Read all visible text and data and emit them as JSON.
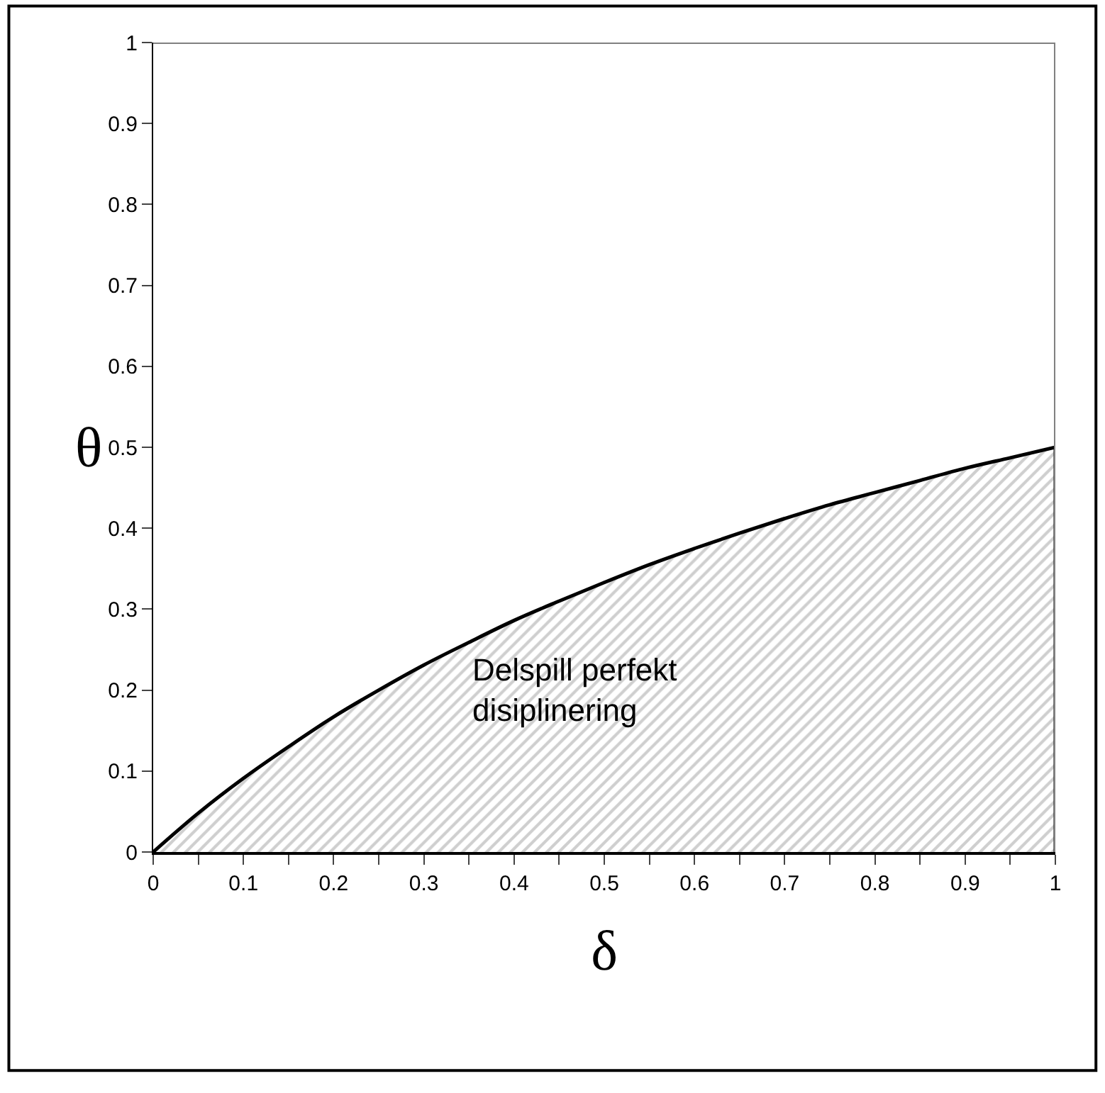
{
  "chart_data": {
    "type": "area",
    "xlabel": "δ",
    "ylabel": "θ",
    "x": [
      0,
      0.05,
      0.1,
      0.15,
      0.2,
      0.25,
      0.3,
      0.35,
      0.4,
      0.45,
      0.5,
      0.55,
      0.6,
      0.65,
      0.7,
      0.75,
      0.8,
      0.85,
      0.9,
      0.95,
      1
    ],
    "series": [
      {
        "color": "#000000",
        "values": [
          0,
          0.048,
          0.091,
          0.13,
          0.167,
          0.2,
          0.231,
          0.259,
          0.286,
          0.31,
          0.333,
          0.355,
          0.375,
          0.394,
          0.412,
          0.429,
          0.444,
          0.459,
          0.474,
          0.487,
          0.5
        ]
      }
    ],
    "xlim": [
      0,
      1
    ],
    "ylim": [
      0,
      1
    ],
    "xticks": [
      0,
      {
        "value": 0.05,
        "label": null
      },
      0.1,
      {
        "value": 0.15,
        "label": null
      },
      0.2,
      {
        "value": 0.25,
        "label": null
      },
      0.3,
      {
        "value": 0.35,
        "label": null
      },
      0.4,
      {
        "value": 0.45,
        "label": null
      },
      0.5,
      {
        "value": 0.55,
        "label": null
      },
      0.6,
      {
        "value": 0.65,
        "label": null
      },
      0.7,
      {
        "value": 0.75,
        "label": null
      },
      0.8,
      {
        "value": 0.85,
        "label": null
      },
      0.9,
      {
        "value": 0.95,
        "label": null
      },
      1
    ],
    "yticks": [
      0,
      0.1,
      0.2,
      0.3,
      0.4,
      0.5,
      0.6,
      0.7,
      0.8,
      0.9,
      1
    ],
    "annotations": [
      "Delspill perfekt\ndisiplinering"
    ]
  }
}
